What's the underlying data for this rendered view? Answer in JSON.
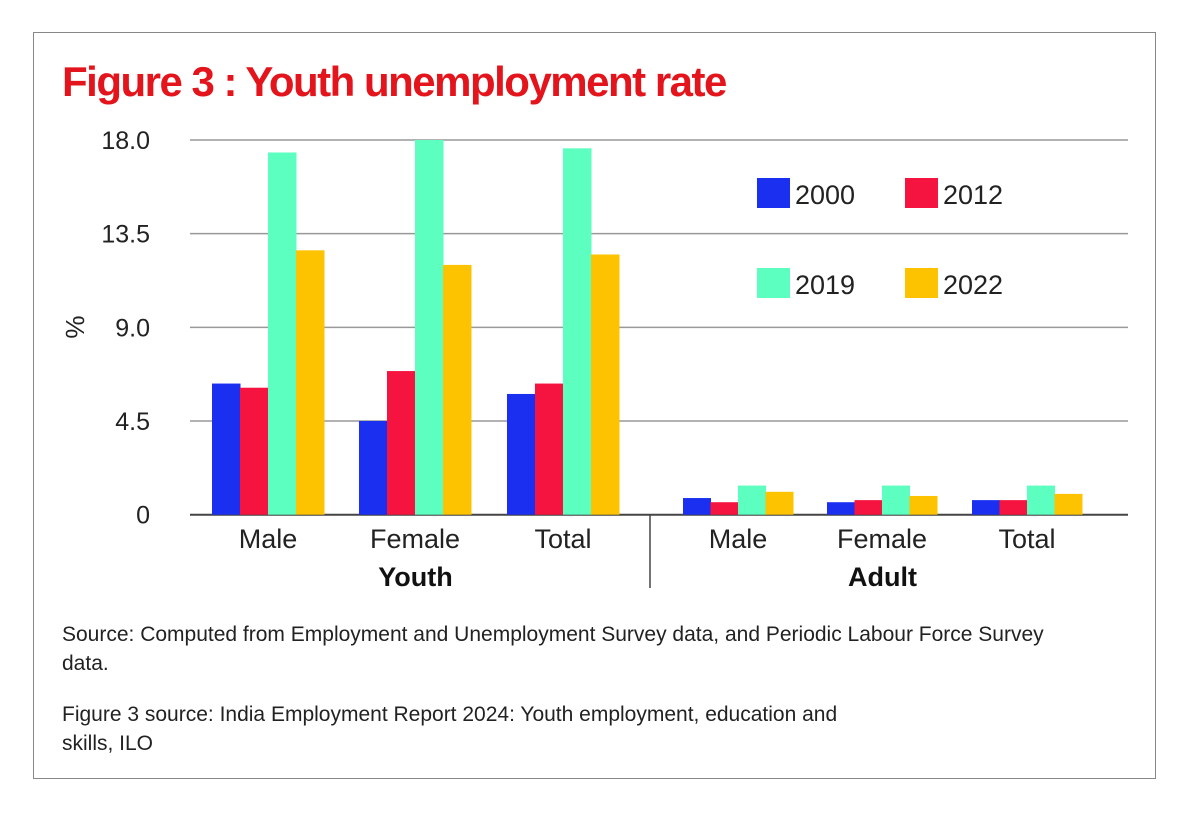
{
  "chart_data": {
    "type": "bar",
    "title": "Figure 3 : Youth unemployment rate",
    "ylabel": "%",
    "xlabel": "",
    "ylim": [
      0,
      18
    ],
    "yticks": [
      "0",
      "4.5",
      "9.0",
      "13.5",
      "18.0"
    ],
    "ytick_values": [
      0,
      4.5,
      9,
      13.5,
      18
    ],
    "grid": true,
    "legend_position": "top-right",
    "groups": [
      {
        "label": "Youth",
        "categories": [
          "Male",
          "Female",
          "Total"
        ]
      },
      {
        "label": "Adult",
        "categories": [
          "Male",
          "Female",
          "Total"
        ]
      }
    ],
    "series": [
      {
        "name": "2000",
        "color": "#1a2ff0",
        "values": [
          6.3,
          4.5,
          5.8,
          0.8,
          0.6,
          0.7
        ]
      },
      {
        "name": "2012",
        "color": "#f5143f",
        "values": [
          6.1,
          6.9,
          6.3,
          0.6,
          0.7,
          0.7
        ]
      },
      {
        "name": "2019",
        "color": "#5cffc0",
        "values": [
          17.4,
          18.0,
          17.6,
          1.4,
          1.4,
          1.4
        ]
      },
      {
        "name": "2022",
        "color": "#fdc300",
        "values": [
          12.7,
          12.0,
          12.5,
          1.1,
          0.9,
          1.0
        ]
      }
    ]
  },
  "notes": {
    "source1": "Source: Computed from Employment and Unemployment Survey data, and Periodic Labour Force Survey data.",
    "source2": "Figure 3 source: India Employment Report 2024: Youth employment, education and skills, ILO"
  }
}
